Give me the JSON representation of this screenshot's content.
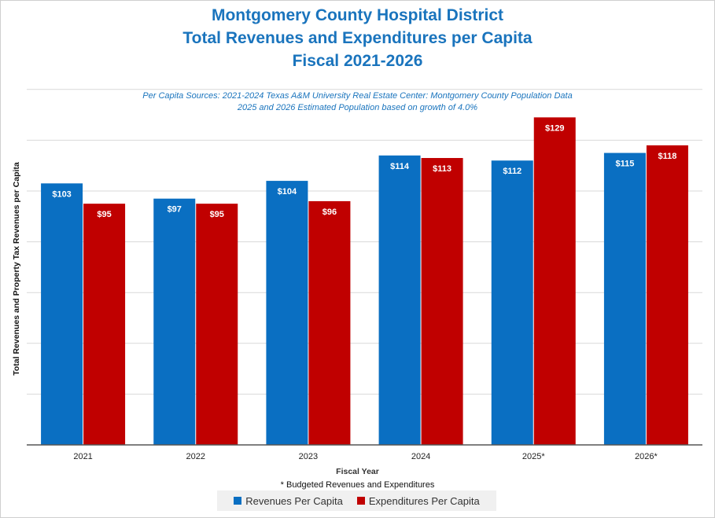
{
  "title_lines": [
    "Montgomery County Hospital District",
    "Total Revenues and Expenditures per Capita",
    "Fiscal 2021-2026"
  ],
  "notes": [
    "Per Capita Sources: 2021-2024 Texas A&M University Real Estate Center: Montgomery County Population Data",
    "2025 and 2026 Estimated Population based on growth of 4.0%"
  ],
  "footnote": "* Budgeted Revenues and Expenditures",
  "colors": {
    "revenues": "#0a6fc2",
    "expenditures": "#c00000",
    "title": "#1a74bd"
  },
  "chart_data": {
    "type": "bar",
    "title": "Montgomery County Hospital District Total Revenues and Expenditures per Capita Fiscal 2021-2026",
    "xlabel": "Fiscal Year",
    "ylabel": "Total Revenues and Property Tax Revenues  per Capita",
    "categories": [
      "2021",
      "2022",
      "2023",
      "2024",
      "2025*",
      "2026*"
    ],
    "series": [
      {
        "name": "Revenues Per Capita",
        "values": [
          103,
          97,
          104,
          114,
          112,
          115
        ],
        "labels": [
          "$103",
          "$97",
          "$104",
          "$114",
          "$112",
          "$115"
        ]
      },
      {
        "name": "Expenditures Per Capita",
        "values": [
          95,
          95,
          96,
          113,
          129,
          118
        ],
        "labels": [
          "$95",
          "$95",
          "$96",
          "$113",
          "$129",
          "$118"
        ]
      }
    ],
    "ylim": [
      0,
      140
    ],
    "grid": true,
    "legend": "bottom"
  }
}
